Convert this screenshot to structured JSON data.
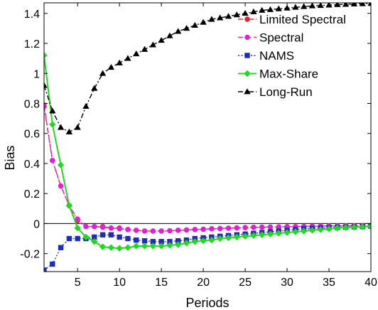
{
  "chart_data": {
    "type": "line",
    "title": "",
    "xlabel": "Periods",
    "ylabel": "Bias",
    "xlim": [
      1,
      40
    ],
    "ylim": [
      -0.32,
      1.47
    ],
    "x_ticks": [
      5,
      10,
      15,
      20,
      25,
      30,
      35,
      40
    ],
    "x_tick_labels": [
      "5",
      "10",
      "15",
      "20",
      "25",
      "30",
      "35",
      "40"
    ],
    "y_ticks": [
      -0.2,
      0,
      0.2,
      0.4,
      0.6,
      0.8,
      1,
      1.2,
      1.4
    ],
    "y_tick_labels": [
      "-0.2",
      "0",
      "0.2",
      "0.4",
      "0.6",
      "0.8",
      "1",
      "1.2",
      "1.4"
    ],
    "grid": false,
    "zero_line": true,
    "legend_position": "top-right",
    "x": [
      1,
      2,
      3,
      4,
      5,
      6,
      7,
      8,
      9,
      10,
      11,
      12,
      13,
      14,
      15,
      16,
      17,
      18,
      19,
      20,
      21,
      22,
      23,
      24,
      25,
      26,
      27,
      28,
      29,
      30,
      31,
      32,
      33,
      34,
      35,
      36,
      37,
      38,
      39,
      40
    ],
    "series": [
      {
        "name": "Limited Spectral",
        "color": "#e8202a",
        "dash": "dashdot",
        "marker": "circle",
        "values": [
          0.78,
          0.42,
          0.25,
          0.12,
          0.02,
          -0.02,
          -0.02,
          -0.02,
          -0.03,
          -0.03,
          -0.04,
          -0.045,
          -0.05,
          -0.05,
          -0.05,
          -0.048,
          -0.045,
          -0.043,
          -0.04,
          -0.038,
          -0.035,
          -0.033,
          -0.031,
          -0.029,
          -0.027,
          -0.025,
          -0.024,
          -0.023,
          -0.022,
          -0.021,
          -0.02,
          -0.019,
          -0.018,
          -0.017,
          -0.016,
          -0.016,
          -0.015,
          -0.015,
          -0.014,
          -0.014
        ]
      },
      {
        "name": "Spectral",
        "color": "#e020d8",
        "dash": "dashed",
        "marker": "circle",
        "values": [
          0.79,
          0.42,
          0.25,
          0.12,
          0.03,
          -0.02,
          -0.02,
          -0.025,
          -0.03,
          -0.035,
          -0.04,
          -0.045,
          -0.05,
          -0.05,
          -0.05,
          -0.048,
          -0.045,
          -0.043,
          -0.04,
          -0.038,
          -0.035,
          -0.033,
          -0.031,
          -0.029,
          -0.027,
          -0.025,
          -0.024,
          -0.023,
          -0.022,
          -0.021,
          -0.02,
          -0.019,
          -0.018,
          -0.017,
          -0.016,
          -0.016,
          -0.015,
          -0.015,
          -0.014,
          -0.014
        ]
      },
      {
        "name": "NAMS",
        "color": "#1e2fb4",
        "dash": "dotted",
        "marker": "square",
        "values": [
          -0.31,
          -0.27,
          -0.16,
          -0.1,
          -0.1,
          -0.1,
          -0.09,
          -0.075,
          -0.075,
          -0.09,
          -0.1,
          -0.11,
          -0.115,
          -0.12,
          -0.12,
          -0.12,
          -0.115,
          -0.11,
          -0.1,
          -0.095,
          -0.09,
          -0.085,
          -0.08,
          -0.075,
          -0.07,
          -0.065,
          -0.06,
          -0.055,
          -0.05,
          -0.045,
          -0.04,
          -0.035,
          -0.033,
          -0.03,
          -0.028,
          -0.026,
          -0.024,
          -0.022,
          -0.02,
          -0.018
        ]
      },
      {
        "name": "Max-Share",
        "color": "#22d822",
        "dash": "solid",
        "marker": "diamond",
        "values": [
          1.12,
          0.66,
          0.39,
          0.12,
          -0.03,
          -0.09,
          -0.12,
          -0.155,
          -0.16,
          -0.165,
          -0.16,
          -0.15,
          -0.15,
          -0.15,
          -0.15,
          -0.145,
          -0.14,
          -0.13,
          -0.12,
          -0.115,
          -0.11,
          -0.1,
          -0.095,
          -0.09,
          -0.085,
          -0.08,
          -0.075,
          -0.07,
          -0.065,
          -0.06,
          -0.055,
          -0.05,
          -0.045,
          -0.04,
          -0.035,
          -0.03,
          -0.027,
          -0.024,
          -0.022,
          -0.02
        ]
      },
      {
        "name": "Long-Run",
        "color": "#000000",
        "dash": "dashdot",
        "marker": "triangle",
        "values": [
          0.92,
          0.75,
          0.64,
          0.61,
          0.64,
          0.78,
          0.9,
          1.0,
          1.04,
          1.07,
          1.1,
          1.13,
          1.16,
          1.19,
          1.22,
          1.25,
          1.28,
          1.3,
          1.32,
          1.34,
          1.36,
          1.37,
          1.38,
          1.39,
          1.4,
          1.41,
          1.42,
          1.425,
          1.43,
          1.435,
          1.44,
          1.445,
          1.45,
          1.452,
          1.455,
          1.458,
          1.46,
          1.462,
          1.464,
          1.466
        ]
      }
    ]
  }
}
